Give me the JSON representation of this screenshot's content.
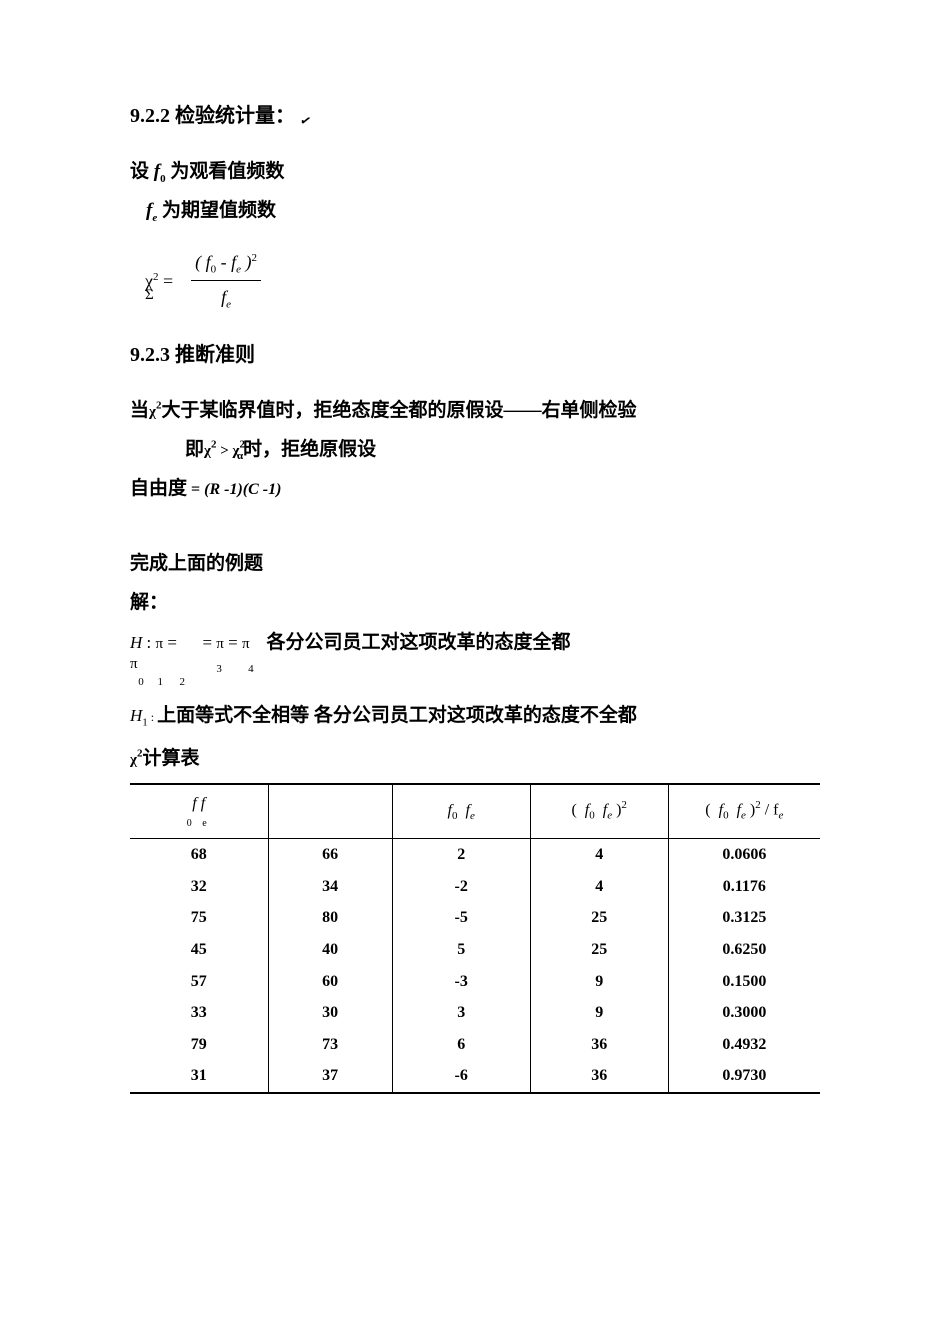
{
  "section1": {
    "number": "9.2.2",
    "title": "检验统计量：",
    "check_icon": "✓"
  },
  "def1_prefix": "设",
  "def1_var": "f",
  "def1_sub": "0",
  "def1_text": " 为观看值频数",
  "def2_var": "f",
  "def2_sub": "e",
  "def2_text": " 为期望值频数",
  "formula": {
    "chi": "χ",
    "sup2": "2",
    "eq": " = ",
    "sigma": "Σ",
    "num": "( f  -  f  )",
    "num_sub1": "0",
    "num_sub2": "e",
    "num_sup": "2",
    "den": "f",
    "den_sub": "e"
  },
  "section2": {
    "number": "9.2.3",
    "title": "推断准则"
  },
  "rule1_prefix": "当",
  "rule1_chi": "χ",
  "rule1_sup": "2",
  "rule1_text": "大于某临界值时，拒绝态度全都的原假设——右单侧检验",
  "rule2_prefix": "即",
  "rule2_chi1": "χ",
  "rule2_sup1": "2",
  "rule2_gt": " > ",
  "rule2_chi2": "χ",
  "rule2_sup2": "2",
  "rule2_alpha": "α",
  "rule2_text": "时，拒绝原假设",
  "df_label": "自由度",
  "df_eq": " = ",
  "df_formula": "(R -1)(C -1)",
  "example_title": "完成上面的例题",
  "solution_label": "解：",
  "h0": {
    "H": "H",
    "sub": "0",
    "colon": " : ",
    "pi1": "π",
    "sub1": "1",
    "eq1": "  =  ",
    "pi_left": "π",
    "sub_left": "2",
    "eq2": "  = ",
    "pi3": "π",
    "sub3": "3",
    "eq3": " = ",
    "pi4": "π",
    "sub4": "4",
    "text": "各分公司员工对这项改革的态度全都"
  },
  "h1": {
    "H": "H",
    "sub": "1",
    "colon": " : ",
    "text1": "上面等式不全相等  各分公司员工对这项改革的态度不全都"
  },
  "chi_table_label_chi": "χ",
  "chi_table_label_sup": "2",
  "chi_table_label": "计算表",
  "table": {
    "headers": {
      "c1": "f f",
      "c1_sub": "0 e",
      "c2": "",
      "c3": "f   f",
      "c3_sub1": "0",
      "c3_sub2": "e",
      "c4_open": "(  f   f  )",
      "c4_sub1": "0",
      "c4_sub2": "e",
      "c4_sup": "2",
      "c5_open": "(  f   f  )",
      "c5_sub1": "0",
      "c5_sub2": "e",
      "c5_sup": "2",
      "c5_div": " /  f",
      "c5_sub3": "e"
    },
    "rows": [
      {
        "c1": "68",
        "c2": "66",
        "c3": "2",
        "c4": "4",
        "c5": "0.0606"
      },
      {
        "c1": "32",
        "c2": "34",
        "c3": "-2",
        "c4": "4",
        "c5": "0.1176"
      },
      {
        "c1": "75",
        "c2": "80",
        "c3": "-5",
        "c4": "25",
        "c5": "0.3125"
      },
      {
        "c1": "45",
        "c2": "40",
        "c3": "5",
        "c4": "25",
        "c5": "0.6250"
      },
      {
        "c1": "57",
        "c2": "60",
        "c3": "-3",
        "c4": "9",
        "c5": "0.1500"
      },
      {
        "c1": "33",
        "c2": "30",
        "c3": "3",
        "c4": "9",
        "c5": "0.3000"
      },
      {
        "c1": "79",
        "c2": "73",
        "c3": "6",
        "c4": "36",
        "c5": "0.4932"
      },
      {
        "c1": "31",
        "c2": "37",
        "c3": "-6",
        "c4": "36",
        "c5": "0.9730"
      }
    ]
  }
}
